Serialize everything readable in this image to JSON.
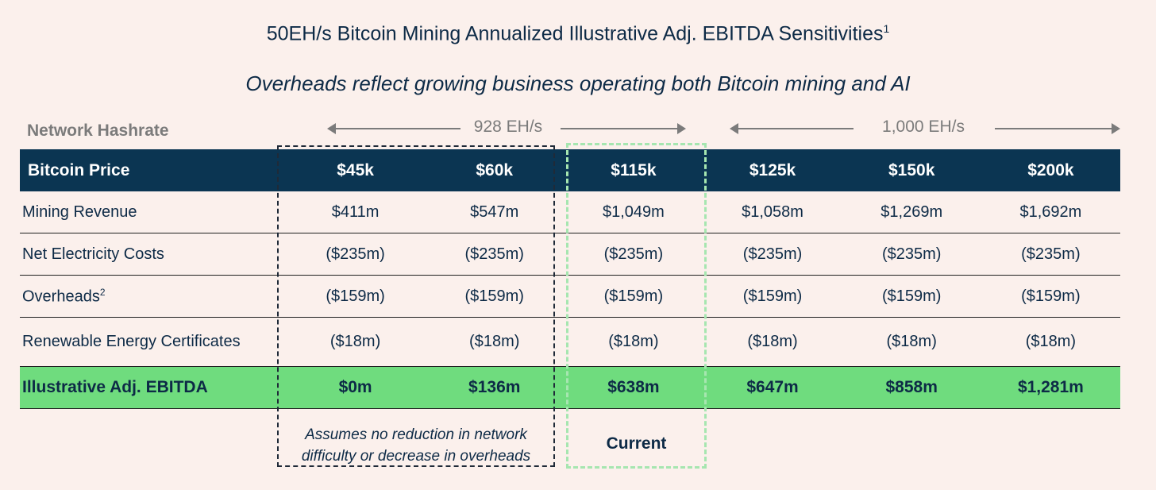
{
  "title": "50EH/s Bitcoin Mining Annualized Illustrative Adj. EBITDA Sensitivities",
  "title_footnote": "1",
  "subtitle": "Overheads reflect growing business operating both Bitcoin mining and AI",
  "hashrate": {
    "label": "Network Hashrate",
    "group1": "928 EH/s",
    "group2": "1,000 EH/s"
  },
  "chart_data": {
    "type": "table",
    "title": "50EH/s Bitcoin Mining Annualized Illustrative Adj. EBITDA Sensitivities",
    "header_label": "Bitcoin Price",
    "columns": [
      "$45k",
      "$60k",
      "$115k",
      "$125k",
      "$150k",
      "$200k"
    ],
    "network_hashrate": [
      "928 EH/s",
      "928 EH/s",
      "928 EH/s",
      "1,000 EH/s",
      "1,000 EH/s",
      "1,000 EH/s"
    ],
    "rows": [
      {
        "label": "Mining Revenue",
        "footnote": "",
        "values": [
          "$411m",
          "$547m",
          "$1,049m",
          "$1,058m",
          "$1,269m",
          "$1,692m"
        ]
      },
      {
        "label": "Net Electricity Costs",
        "footnote": "",
        "values": [
          "($235m)",
          "($235m)",
          "($235m)",
          "($235m)",
          "($235m)",
          "($235m)"
        ]
      },
      {
        "label": "Overheads",
        "footnote": "2",
        "values": [
          "($159m)",
          "($159m)",
          "($159m)",
          "($159m)",
          "($159m)",
          "($159m)"
        ]
      },
      {
        "label": "Renewable Energy Certificates",
        "footnote": "",
        "values": [
          "($18m)",
          "($18m)",
          "($18m)",
          "($18m)",
          "($18m)",
          "($18m)"
        ]
      }
    ],
    "total": {
      "label": "Illustrative Adj. EBITDA",
      "values": [
        "$0m",
        "$136m",
        "$638m",
        "$647m",
        "$858m",
        "$1,281m"
      ]
    }
  },
  "notes": {
    "assume": "Assumes no reduction in network difficulty or decrease in overheads",
    "current": "Current"
  },
  "colors": {
    "header_bg": "#0b3552",
    "total_bg": "#6fdc7e",
    "page_bg": "#fbf0ec",
    "current_box": "#a6e6b0"
  }
}
